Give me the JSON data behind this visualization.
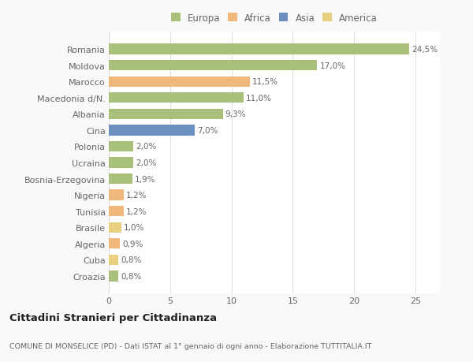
{
  "countries": [
    "Romania",
    "Moldova",
    "Marocco",
    "Macedonia d/N.",
    "Albania",
    "Cina",
    "Polonia",
    "Ucraina",
    "Bosnia-Erzegovina",
    "Nigeria",
    "Tunisia",
    "Brasile",
    "Algeria",
    "Cuba",
    "Croazia"
  ],
  "values": [
    24.5,
    17.0,
    11.5,
    11.0,
    9.3,
    7.0,
    2.0,
    2.0,
    1.9,
    1.2,
    1.2,
    1.0,
    0.9,
    0.8,
    0.8
  ],
  "labels": [
    "24,5%",
    "17,0%",
    "11,5%",
    "11,0%",
    "9,3%",
    "7,0%",
    "2,0%",
    "2,0%",
    "1,9%",
    "1,2%",
    "1,2%",
    "1,0%",
    "0,9%",
    "0,8%",
    "0,8%"
  ],
  "colors": [
    "#a8c07a",
    "#a8c07a",
    "#f0b87a",
    "#a8c07a",
    "#a8c07a",
    "#6b8fbe",
    "#a8c07a",
    "#a8c07a",
    "#a8c07a",
    "#f0b87a",
    "#f0b87a",
    "#e8d080",
    "#f0b87a",
    "#e8d080",
    "#a8c07a"
  ],
  "legend_labels": [
    "Europa",
    "Africa",
    "Asia",
    "America"
  ],
  "legend_colors": [
    "#a8c07a",
    "#f0b87a",
    "#6b8fbe",
    "#e8d080"
  ],
  "title": "Cittadini Stranieri per Cittadinanza",
  "subtitle": "COMUNE DI MONSELICE (PD) - Dati ISTAT al 1° gennaio di ogni anno - Elaborazione TUTTITALIA.IT",
  "xlim": [
    0,
    27
  ],
  "bg_color": "#f9f9f9",
  "bar_bg_color": "#ffffff"
}
